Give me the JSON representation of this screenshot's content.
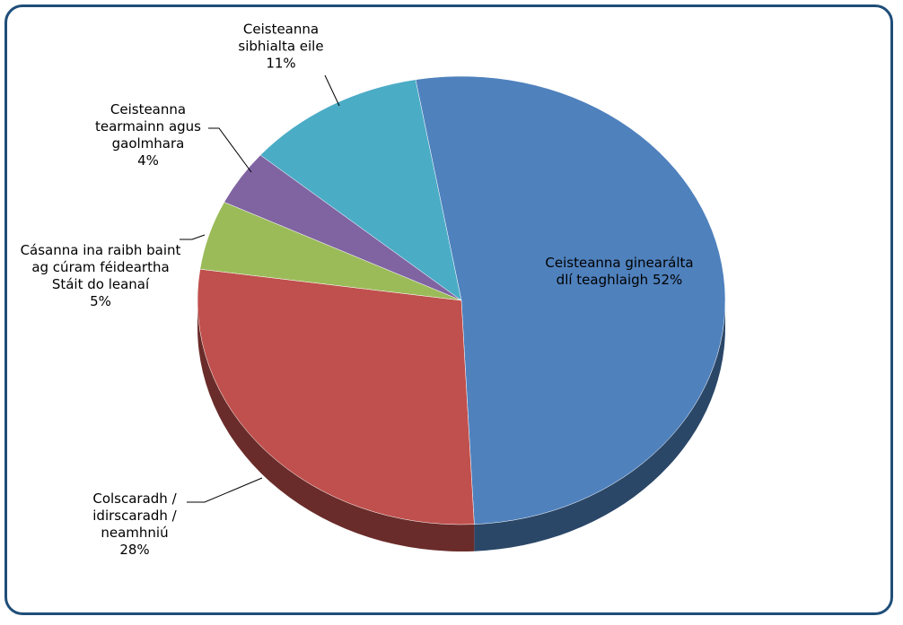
{
  "chart_data": {
    "type": "pie",
    "categories": [
      "Ceisteanna ginearálta dlí teaghlaigh",
      "Colscaradh / idirscaradh / neamhniú",
      "Cásanna ina raibh baint ag cúram féideartha Stáit do leanaí",
      "Ceisteanna tearmainn agus gaolmhara",
      "Ceisteanna sibhialta eile"
    ],
    "values": [
      52,
      28,
      5,
      4,
      11
    ],
    "value_labels": [
      "52%",
      "28%",
      "5%",
      "4%",
      "11%"
    ],
    "colors": [
      "#4f81bd",
      "#c0504d",
      "#9bbb59",
      "#8064a2",
      "#4bacc6"
    ]
  }
}
